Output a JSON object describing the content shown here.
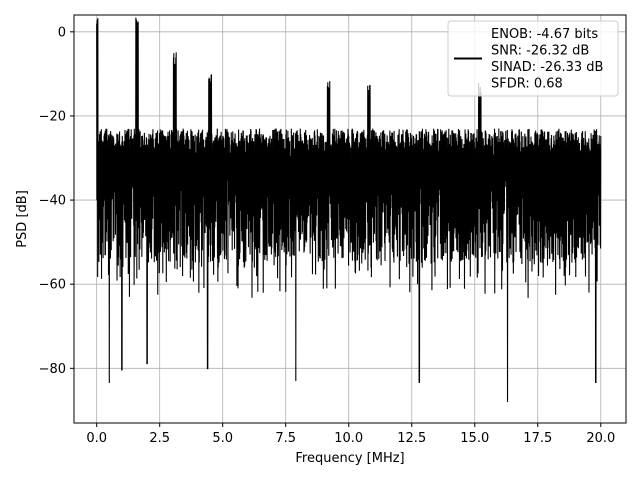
{
  "chart_data": {
    "type": "line",
    "title": "",
    "xlabel": "Frequency [MHz]",
    "ylabel": "PSD [dB]",
    "xlim": [
      -0.9,
      21.0
    ],
    "ylim": [
      -93,
      4
    ],
    "x_ticks": [
      0.0,
      2.5,
      5.0,
      7.5,
      10.0,
      12.5,
      15.0,
      17.5,
      20.0
    ],
    "x_tick_labels": [
      "0.0",
      "2.5",
      "5.0",
      "7.5",
      "10.0",
      "12.5",
      "15.0",
      "17.5",
      "20.0"
    ],
    "y_ticks": [
      0,
      -20,
      -40,
      -60,
      -80
    ],
    "y_tick_labels": [
      "0",
      "−20",
      "−40",
      "−60",
      "−80"
    ],
    "grid": true,
    "legend": {
      "placement": "top-right",
      "lines": [
        "ENOB: -4.67 bits",
        "SNR: -26.32 dB",
        "SINAD: -26.33 dB",
        "SFDR: 0.68"
      ]
    },
    "series": [
      {
        "color": "#000000",
        "x_range": [
          0.0,
          20.0
        ],
        "noise_ceiling_db": -23,
        "noise_floor_db": -65,
        "peaks": [
          {
            "x": 0.0,
            "y": 0.0
          },
          {
            "x": 1.6,
            "y": -0.7
          },
          {
            "x": 3.1,
            "y": -9.5
          },
          {
            "x": 4.5,
            "y": -14.5
          },
          {
            "x": 9.2,
            "y": -15.5
          },
          {
            "x": 10.8,
            "y": -16.5
          },
          {
            "x": 15.2,
            "y": -16.5
          }
        ],
        "deep_dips": [
          {
            "x": 0.5,
            "y": -83.5
          },
          {
            "x": 1.0,
            "y": -80.5
          },
          {
            "x": 2.0,
            "y": -79.0
          },
          {
            "x": 4.4,
            "y": -80.2
          },
          {
            "x": 7.9,
            "y": -83.0
          },
          {
            "x": 12.8,
            "y": -83.5
          },
          {
            "x": 16.3,
            "y": -88.0
          },
          {
            "x": 19.8,
            "y": -83.5
          }
        ]
      }
    ]
  }
}
